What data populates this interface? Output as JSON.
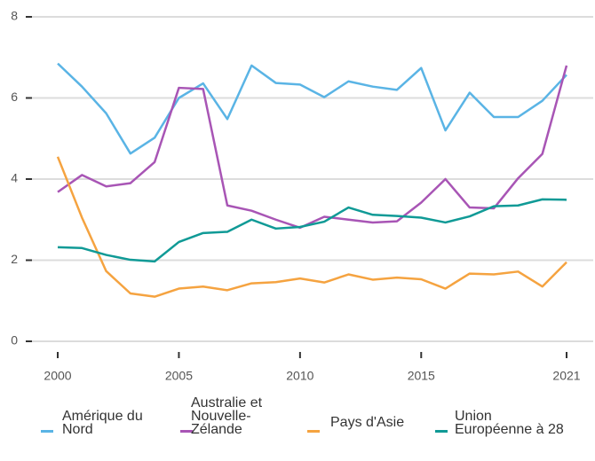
{
  "chart_data": {
    "type": "line",
    "x": [
      2000,
      2001,
      2002,
      2003,
      2004,
      2005,
      2006,
      2007,
      2008,
      2009,
      2010,
      2011,
      2012,
      2013,
      2014,
      2015,
      2016,
      2017,
      2018,
      2019,
      2020,
      2021
    ],
    "xlim": [
      1998.9,
      2022.1
    ],
    "xticks": [
      2000,
      2005,
      2010,
      2015,
      2021
    ],
    "ylim": [
      0,
      8
    ],
    "yticks": [
      0,
      2,
      4,
      6,
      8
    ],
    "grid": true,
    "legend": "bottom",
    "series": [
      {
        "name": "Amérique du Nord",
        "color": "#5ab4e5",
        "values": [
          6.85,
          6.28,
          5.62,
          4.63,
          5.02,
          6.0,
          6.36,
          5.48,
          6.8,
          6.37,
          6.33,
          6.02,
          6.41,
          6.28,
          6.2,
          6.74,
          5.2,
          6.13,
          5.53,
          5.53,
          5.93,
          6.57
        ]
      },
      {
        "name": "Australie et Nouvelle-Zélande",
        "color": "#a855b5",
        "values": [
          3.68,
          4.1,
          3.82,
          3.9,
          4.42,
          6.25,
          6.22,
          3.35,
          3.22,
          3.0,
          2.8,
          3.07,
          3.0,
          2.93,
          2.96,
          3.42,
          4.0,
          3.3,
          3.28,
          4.02,
          4.62,
          6.8
        ]
      },
      {
        "name": "Pays d'Asie",
        "color": "#f5a340",
        "values": [
          4.55,
          3.05,
          1.73,
          1.18,
          1.1,
          1.3,
          1.35,
          1.26,
          1.43,
          1.46,
          1.55,
          1.45,
          1.65,
          1.52,
          1.57,
          1.53,
          1.3,
          1.67,
          1.65,
          1.72,
          1.35,
          1.95
        ]
      },
      {
        "name": "Union Européenne à 28",
        "color": "#109a96",
        "values": [
          2.32,
          2.3,
          2.13,
          2.01,
          1.97,
          2.45,
          2.67,
          2.7,
          3.0,
          2.78,
          2.82,
          2.95,
          3.3,
          3.12,
          3.09,
          3.05,
          2.93,
          3.08,
          3.33,
          3.35,
          3.5,
          3.49
        ]
      }
    ]
  }
}
